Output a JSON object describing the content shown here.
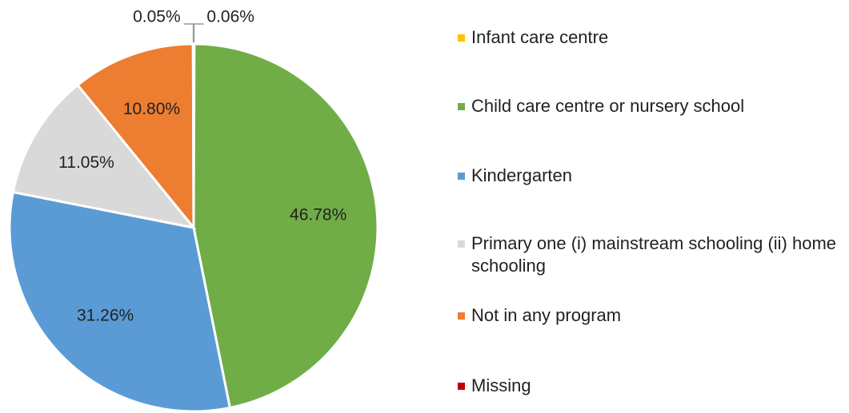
{
  "chart_data": {
    "type": "pie",
    "categories": [
      "Infant care centre",
      "Child care centre or nursery school",
      "Kindergarten",
      "Primary one (i) mainstream schooling (ii) home schooling",
      "Not in any program",
      "Missing"
    ],
    "values": [
      0.06,
      46.78,
      31.26,
      11.05,
      10.8,
      0.05
    ],
    "value_labels": [
      "0.06%",
      "46.78%",
      "31.26%",
      "11.05%",
      "10.80%",
      "0.05%"
    ],
    "colors": [
      "#ffc000",
      "#70ad47",
      "#5b9bd5",
      "#d9d9d9",
      "#ed7d31",
      "#c00000"
    ],
    "legend": "right"
  }
}
